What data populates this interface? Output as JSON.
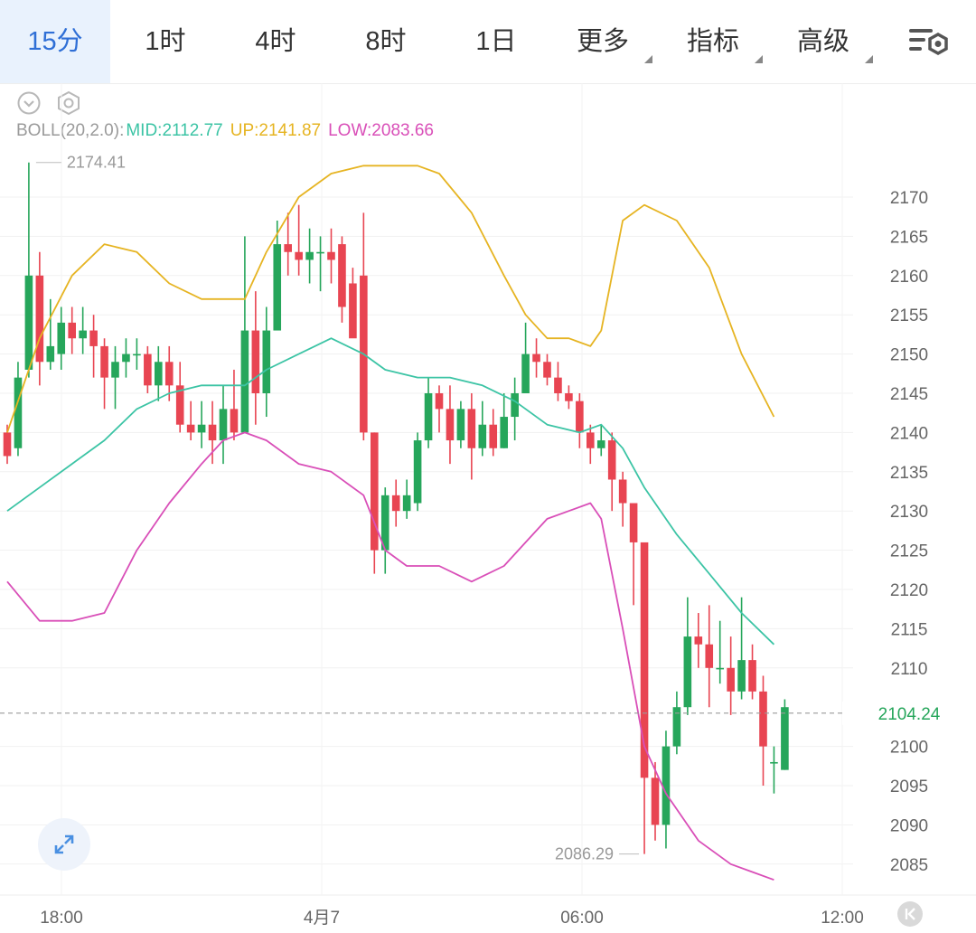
{
  "tabs": [
    {
      "label": "15分",
      "active": true
    },
    {
      "label": "1时"
    },
    {
      "label": "4时"
    },
    {
      "label": "8时"
    },
    {
      "label": "1日"
    },
    {
      "label": "更多",
      "more": true
    },
    {
      "label": "指标",
      "more": true
    },
    {
      "label": "高级",
      "more": true
    }
  ],
  "toolbar_icons": [
    "collapse-icon",
    "settings-hex-icon",
    "chart-settings-icon",
    "expand-icon",
    "scroll-to-latest-icon"
  ],
  "legend": {
    "name": "BOLL(20,2.0):",
    "mid": "MID:2112.77",
    "up": "UP:2141.87",
    "low": "LOW:2083.66"
  },
  "colors": {
    "up_candle": "#26a65b",
    "down_candle": "#e84552",
    "mid": "#3cc4a5",
    "upper": "#e6b422",
    "lower": "#d94fb8",
    "active_tab": "#2f6fd6",
    "last_price": "#26a65b"
  },
  "chart_data": {
    "type": "candlestick",
    "indicator": "BOLL(20,2.0)",
    "y_ticks": [
      2170,
      2165,
      2160,
      2155,
      2150,
      2145,
      2140,
      2135,
      2130,
      2125,
      2120,
      2115,
      2110,
      2100,
      2095,
      2090,
      2085
    ],
    "x_ticks": [
      "18:00",
      "4月7",
      "06:00",
      "12:00"
    ],
    "ylim": [
      2080,
      2180
    ],
    "last_price": "2104.24",
    "high_marker": "2174.41",
    "low_marker": "2086.29",
    "candles": [
      [
        2140,
        2137,
        2141,
        2136
      ],
      [
        2138,
        2147,
        2149,
        2137
      ],
      [
        2148,
        2160,
        2174.41,
        2147
      ],
      [
        2160,
        2149,
        2163,
        2146
      ],
      [
        2149,
        2151,
        2157,
        2148
      ],
      [
        2150,
        2154,
        2156,
        2148
      ],
      [
        2154,
        2152,
        2156,
        2150
      ],
      [
        2152,
        2153,
        2156,
        2150
      ],
      [
        2153,
        2151,
        2155,
        2147
      ],
      [
        2151,
        2147,
        2152,
        2143
      ],
      [
        2147,
        2149,
        2151,
        2143
      ],
      [
        2149,
        2150,
        2152,
        2147
      ],
      [
        2150,
        2150,
        2152,
        2148
      ],
      [
        2150,
        2146,
        2151,
        2145
      ],
      [
        2146,
        2149,
        2151,
        2144
      ],
      [
        2149,
        2146,
        2151,
        2144
      ],
      [
        2146,
        2141,
        2149,
        2140
      ],
      [
        2141,
        2140,
        2144,
        2139
      ],
      [
        2140,
        2141,
        2144,
        2138
      ],
      [
        2141,
        2139,
        2144,
        2136
      ],
      [
        2139,
        2143,
        2146,
        2136
      ],
      [
        2143,
        2140,
        2148,
        2139
      ],
      [
        2140,
        2153,
        2165,
        2140
      ],
      [
        2153,
        2145,
        2158,
        2141
      ],
      [
        2145,
        2153,
        2156,
        2142
      ],
      [
        2153,
        2164,
        2167,
        2155
      ],
      [
        2164,
        2163,
        2168,
        2160
      ],
      [
        2163,
        2162,
        2169,
        2160
      ],
      [
        2162,
        2163,
        2166,
        2159
      ],
      [
        2163,
        2163,
        2165,
        2158
      ],
      [
        2163,
        2162,
        2166,
        2159
      ],
      [
        2164,
        2156,
        2165,
        2154
      ],
      [
        2159,
        2152,
        2161,
        2154
      ],
      [
        2160,
        2140,
        2168,
        2139
      ],
      [
        2140,
        2125,
        2140,
        2122
      ],
      [
        2125,
        2132,
        2133,
        2122
      ],
      [
        2132,
        2130,
        2134,
        2128
      ],
      [
        2130,
        2132,
        2134,
        2129
      ],
      [
        2131,
        2139,
        2140,
        2130
      ],
      [
        2139,
        2145,
        2147,
        2138
      ],
      [
        2145,
        2143,
        2146,
        2140
      ],
      [
        2143,
        2139,
        2146,
        2136
      ],
      [
        2139,
        2143,
        2144,
        2138
      ],
      [
        2143,
        2138,
        2145,
        2134
      ],
      [
        2138,
        2141,
        2144,
        2137
      ],
      [
        2141,
        2138,
        2143,
        2137
      ],
      [
        2138,
        2142,
        2145,
        2138
      ],
      [
        2142,
        2145,
        2147,
        2139
      ],
      [
        2145,
        2150,
        2154,
        2146
      ],
      [
        2150,
        2149,
        2152,
        2147
      ],
      [
        2149,
        2147,
        2150,
        2146
      ],
      [
        2147,
        2145,
        2149,
        2144
      ],
      [
        2145,
        2144,
        2146,
        2143
      ],
      [
        2144,
        2140,
        2145,
        2138
      ],
      [
        2140,
        2138,
        2141,
        2136
      ],
      [
        2138,
        2139,
        2141,
        2137
      ],
      [
        2139,
        2134,
        2140,
        2130
      ],
      [
        2134,
        2131,
        2135,
        2128
      ],
      [
        2131,
        2126,
        2128,
        2118
      ],
      [
        2126,
        2096,
        2104,
        2086.29
      ],
      [
        2096,
        2090,
        2098,
        2088
      ],
      [
        2090,
        2100,
        2102,
        2087
      ],
      [
        2100,
        2105,
        2107,
        2099
      ],
      [
        2105,
        2114,
        2119,
        2104
      ],
      [
        2114,
        2113,
        2117,
        2110
      ],
      [
        2113,
        2110,
        2118,
        2105
      ],
      [
        2110,
        2110,
        2116,
        2108
      ],
      [
        2110,
        2107,
        2114,
        2104
      ],
      [
        2107,
        2111,
        2119,
        2106
      ],
      [
        2111,
        2107,
        2113,
        2106
      ],
      [
        2107,
        2100,
        2109,
        2095
      ],
      [
        2098,
        2098,
        2100,
        2094
      ],
      [
        2097,
        2105,
        2106,
        2097
      ]
    ],
    "boll_mid": [
      [
        0,
        2130
      ],
      [
        3,
        2133
      ],
      [
        6,
        2136
      ],
      [
        9,
        2139
      ],
      [
        12,
        2143
      ],
      [
        15,
        2145
      ],
      [
        18,
        2146
      ],
      [
        20,
        2146
      ],
      [
        22,
        2146
      ],
      [
        24,
        2148
      ],
      [
        27,
        2150
      ],
      [
        30,
        2152
      ],
      [
        33,
        2150
      ],
      [
        35,
        2148
      ],
      [
        38,
        2147
      ],
      [
        41,
        2147
      ],
      [
        44,
        2146
      ],
      [
        47,
        2144
      ],
      [
        50,
        2141
      ],
      [
        53,
        2140
      ],
      [
        55,
        2141
      ],
      [
        57,
        2138
      ],
      [
        59,
        2133
      ],
      [
        62,
        2127
      ],
      [
        65,
        2122
      ],
      [
        68,
        2117
      ],
      [
        71,
        2113
      ]
    ],
    "boll_upper": [
      [
        0,
        2140
      ],
      [
        3,
        2152
      ],
      [
        6,
        2160
      ],
      [
        9,
        2164
      ],
      [
        12,
        2163
      ],
      [
        15,
        2159
      ],
      [
        18,
        2157
      ],
      [
        20,
        2157
      ],
      [
        22,
        2157
      ],
      [
        24,
        2163
      ],
      [
        27,
        2170
      ],
      [
        30,
        2173
      ],
      [
        33,
        2174
      ],
      [
        36,
        2174
      ],
      [
        38,
        2174
      ],
      [
        40,
        2173
      ],
      [
        43,
        2168
      ],
      [
        46,
        2160
      ],
      [
        48,
        2155
      ],
      [
        50,
        2152
      ],
      [
        52,
        2152
      ],
      [
        54,
        2151
      ],
      [
        55,
        2153
      ],
      [
        57,
        2167
      ],
      [
        59,
        2169
      ],
      [
        62,
        2167
      ],
      [
        65,
        2161
      ],
      [
        68,
        2150
      ],
      [
        71,
        2142
      ]
    ],
    "boll_lower": [
      [
        0,
        2121
      ],
      [
        3,
        2116
      ],
      [
        6,
        2116
      ],
      [
        9,
        2117
      ],
      [
        12,
        2125
      ],
      [
        15,
        2131
      ],
      [
        18,
        2136
      ],
      [
        20,
        2139
      ],
      [
        22,
        2140
      ],
      [
        24,
        2139
      ],
      [
        27,
        2136
      ],
      [
        30,
        2135
      ],
      [
        33,
        2132
      ],
      [
        35,
        2125
      ],
      [
        37,
        2123
      ],
      [
        40,
        2123
      ],
      [
        43,
        2121
      ],
      [
        46,
        2123
      ],
      [
        48,
        2126
      ],
      [
        50,
        2129
      ],
      [
        52,
        2130
      ],
      [
        54,
        2131
      ],
      [
        55,
        2129
      ],
      [
        57,
        2115
      ],
      [
        59,
        2100
      ],
      [
        61,
        2094
      ],
      [
        64,
        2088
      ],
      [
        67,
        2085
      ],
      [
        69,
        2084
      ],
      [
        71,
        2083
      ]
    ]
  }
}
